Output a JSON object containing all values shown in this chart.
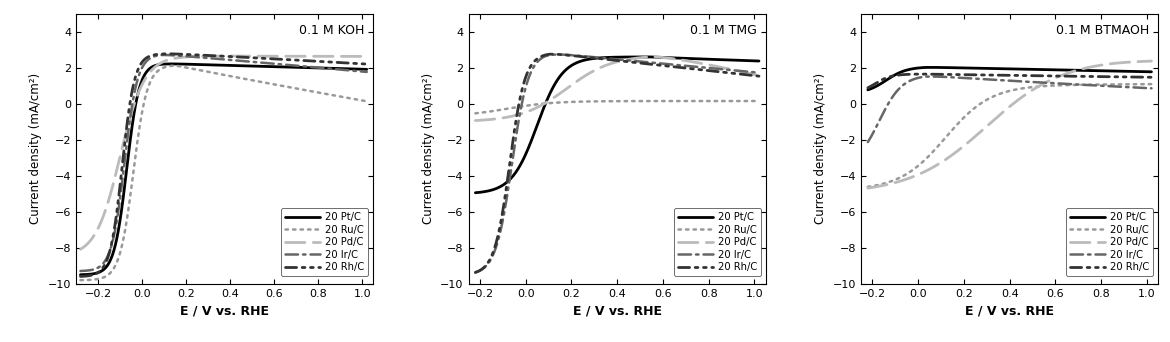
{
  "panels": [
    {
      "title": "0.1 M KOH",
      "xlabel": "E / V vs. RHE",
      "ylabel": "Current density (mA/cm²)",
      "xlim": [
        -0.3,
        1.05
      ],
      "ylim": [
        -10,
        5
      ],
      "yticks": [
        -10,
        -8,
        -6,
        -4,
        -2,
        0,
        2,
        4
      ],
      "xticks": [
        -0.2,
        0.0,
        0.2,
        0.4,
        0.6,
        0.8,
        1.0
      ]
    },
    {
      "title": "0.1 M TMG",
      "xlabel": "E / V vs. RHE",
      "ylabel": "Current density (mA/cm²)",
      "xlim": [
        -0.25,
        1.05
      ],
      "ylim": [
        -10,
        5
      ],
      "yticks": [
        -10,
        -8,
        -6,
        -4,
        -2,
        0,
        2,
        4
      ],
      "xticks": [
        -0.2,
        0.0,
        0.2,
        0.4,
        0.6,
        0.8,
        1.0
      ]
    },
    {
      "title": "0.1 M BTMAOH",
      "xlabel": "E / V vs. RHE",
      "ylabel": "Current density (mA/cm²)",
      "xlim": [
        -0.25,
        1.05
      ],
      "ylim": [
        -10,
        5
      ],
      "yticks": [
        -10,
        -8,
        -6,
        -4,
        -2,
        0,
        2,
        4
      ],
      "xticks": [
        -0.2,
        0.0,
        0.2,
        0.4,
        0.6,
        0.8,
        1.0
      ]
    }
  ],
  "line_styles": [
    {
      "color": "#000000",
      "linestyle": "-",
      "linewidth": 2.0,
      "label": "20 Pt/C"
    },
    {
      "color": "#999999",
      "linestyle": ":",
      "linewidth": 1.8,
      "label": "20 Ru/C"
    },
    {
      "color": "#bbbbbb",
      "linestyle": "--",
      "linewidth": 2.0,
      "label": "20 Pd/C"
    },
    {
      "color": "#666666",
      "linestyle": "-.",
      "linewidth": 1.8,
      "label": "20 Ir/C"
    },
    {
      "color": "#333333",
      "linestyle": "--",
      "linewidth": 2.0,
      "label": "20 Rh/C"
    }
  ]
}
